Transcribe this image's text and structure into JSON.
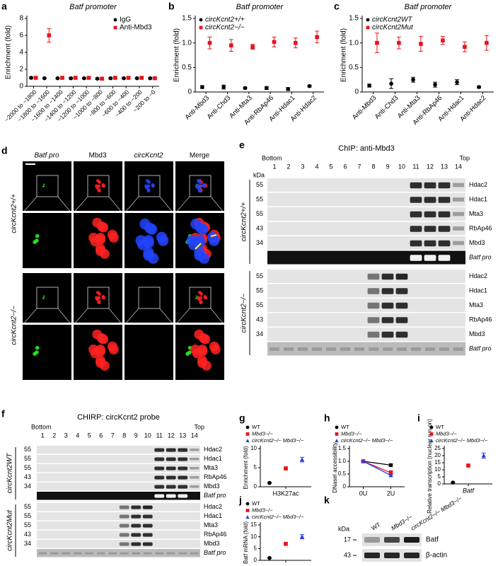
{
  "chart_data": [
    {
      "panel": "a",
      "type": "dot",
      "title": "Batf promoter",
      "ylabel": "Enrichment (fold)",
      "categories": [
        "−2000 to −1800",
        "−1800 to −1600",
        "−1600 to −1400",
        "−1400 to −1200",
        "−1200 to −1000",
        "−1000 to −800",
        "−800 to −600",
        "−600 to −400",
        "−400 to −200",
        "−200 to −0"
      ],
      "series": [
        {
          "name": "IgG",
          "color": "#000000",
          "marker": "circle",
          "values": [
            1.0,
            0.95,
            0.95,
            0.95,
            0.95,
            0.9,
            0.95,
            0.95,
            0.95,
            0.95
          ],
          "errors": [
            0.1,
            0.05,
            0.05,
            0.1,
            0.05,
            0.1,
            0.1,
            0.05,
            0.05,
            0.1
          ]
        },
        {
          "name": "Anti-Mbd3",
          "color": "#e8141c",
          "marker": "square",
          "values": [
            1.0,
            6.0,
            1.0,
            1.0,
            1.0,
            0.9,
            1.0,
            1.0,
            1.0,
            0.95
          ],
          "errors": [
            0.15,
            0.8,
            0.1,
            0.1,
            0.1,
            0.15,
            0.1,
            0.1,
            0.1,
            0.1
          ]
        }
      ],
      "ylim": [
        0,
        8
      ],
      "yticks": [
        0,
        2,
        4,
        6,
        8
      ],
      "legend": "upper-right"
    },
    {
      "panel": "b",
      "type": "dot",
      "title": "Batf promoter",
      "ylabel": "Enrichment (fold)",
      "categories": [
        "Anti-Mbd3",
        "Anti-Chd3",
        "Anti-Mta3",
        "Anti-RbAp46",
        "Anti-Hdac1",
        "Anti-Hdac2"
      ],
      "series": [
        {
          "name": "circKcnt2+/+",
          "color": "#000000",
          "marker": "circle",
          "values": [
            0.1,
            0.1,
            0.08,
            0.08,
            0.06,
            0.12
          ],
          "errors": [
            0.03,
            0.04,
            0.02,
            0.03,
            0.03,
            0.02
          ]
        },
        {
          "name": "circKcnt2−/−",
          "color": "#e8141c",
          "marker": "square",
          "values": [
            1.0,
            0.95,
            0.92,
            1.02,
            1.0,
            1.12
          ],
          "errors": [
            0.12,
            0.12,
            0.05,
            0.1,
            0.1,
            0.12
          ]
        }
      ],
      "ylim": [
        0,
        1.5
      ],
      "yticks": [
        0,
        0.5,
        {
          "value": 1,
          "label": "1.0"
        },
        1.5
      ],
      "legend": "upper-left"
    },
    {
      "panel": "c",
      "type": "dot",
      "title": "Batf promoter",
      "ylabel": "Enrichment (fold)",
      "categories": [
        "Anti-Mbd3",
        "Anti-Chd3",
        "Anti-Mta3",
        "Anti-RbAp46",
        "Anti-Hdac1",
        "Anti-Hdac2"
      ],
      "series": [
        {
          "name": "circKcnt2WT",
          "color": "#000000",
          "marker": "circle",
          "values": [
            0.13,
            0.17,
            0.25,
            0.15,
            0.2,
            0.1
          ],
          "errors": [
            0.03,
            0.1,
            0.05,
            0.05,
            0.05,
            0.02
          ]
        },
        {
          "name": "circKcnt2Mut",
          "color": "#e8141c",
          "marker": "square",
          "values": [
            1.0,
            1.0,
            0.98,
            1.05,
            0.92,
            1.0
          ],
          "errors": [
            0.2,
            0.12,
            0.15,
            0.08,
            0.1,
            0.15
          ]
        }
      ],
      "ylim": [
        0,
        1.5
      ],
      "yticks": [
        0,
        0.5,
        {
          "value": 1,
          "label": "1.0"
        },
        1.5
      ],
      "legend": "upper-left"
    },
    {
      "panel": "g",
      "type": "dot",
      "ylabel": "Enrichment (fold)",
      "categories": [
        "H3K27ac"
      ],
      "series": [
        {
          "name": "WT",
          "color": "#000000",
          "marker": "circle",
          "values": [
            1.0
          ],
          "errors": [
            0.1
          ]
        },
        {
          "name": "Mbd3−/−",
          "color": "#e8141c",
          "marker": "square",
          "values": [
            4.8
          ],
          "errors": [
            0.4
          ]
        },
        {
          "name": "circKcnt2−/− Mbd3−/−",
          "color": "#2a3de0",
          "marker": "triangle",
          "values": [
            7.1
          ],
          "errors": [
            0.6
          ]
        }
      ],
      "ylim": [
        0,
        10
      ],
      "yticks": [
        0,
        5,
        10
      ],
      "legend": "top"
    },
    {
      "panel": "h",
      "type": "line",
      "ylabel": "DNaseI accessibility",
      "categories": [
        "0U",
        "2U"
      ],
      "series": [
        {
          "name": "WT",
          "color": "#000000",
          "marker": "circle",
          "values": [
            1.0,
            0.85
          ],
          "errors": [
            0.02,
            0.05
          ]
        },
        {
          "name": "Mbd3−/−",
          "color": "#e8141c",
          "marker": "square",
          "values": [
            1.0,
            0.55
          ],
          "errors": [
            0.02,
            0.08
          ]
        },
        {
          "name": "circKcnt2−/− Mbd3−/−",
          "color": "#2a3de0",
          "marker": "triangle",
          "values": [
            1.0,
            0.45
          ],
          "errors": [
            0.02,
            0.06
          ]
        }
      ],
      "ylim": [
        0,
        1.5
      ],
      "yticks": [
        0,
        0.5,
        {
          "value": 1,
          "label": "1.0"
        },
        1.5
      ],
      "legend": "top"
    },
    {
      "panel": "i",
      "type": "dot",
      "ylabel": "Relative transcription (nuclear run-on)",
      "categories": [
        "Batf"
      ],
      "series": [
        {
          "name": "WT",
          "color": "#000000",
          "marker": "circle",
          "values": [
            1.0
          ],
          "errors": [
            0.2
          ]
        },
        {
          "name": "Mbd3−/−",
          "color": "#e8141c",
          "marker": "square",
          "values": [
            13.0
          ],
          "errors": [
            1.0
          ]
        },
        {
          "name": "circKcnt2−/− Mbd3−/−",
          "color": "#2a3de0",
          "marker": "triangle",
          "values": [
            20.0
          ],
          "errors": [
            1.8
          ]
        }
      ],
      "ylim": [
        0,
        25
      ],
      "yticks": [
        0,
        5,
        10,
        15,
        20,
        25
      ],
      "legend": "top"
    },
    {
      "panel": "j",
      "type": "dot",
      "ylabel": "Batf mRNA (fold)",
      "categories": [
        null
      ],
      "series": [
        {
          "name": "WT",
          "color": "#000000",
          "marker": "circle",
          "values": [
            1.0
          ],
          "errors": [
            0.1
          ]
        },
        {
          "name": "Mbd3−/−",
          "color": "#e8141c",
          "marker": "square",
          "values": [
            7.0
          ],
          "errors": [
            0.5
          ]
        },
        {
          "name": "circKcnt2−/− Mbd3−/−",
          "color": "#2a3de0",
          "marker": "triangle",
          "values": [
            10.0
          ],
          "errors": [
            0.9
          ]
        }
      ],
      "ylim": [
        0,
        15
      ],
      "yticks": [
        0,
        5,
        10,
        15
      ],
      "legend": "top"
    }
  ],
  "microscopy": {
    "panel": "d",
    "columns": [
      "Batf pro",
      "Mbd3",
      "circKcnt2",
      "Merge"
    ],
    "rows": [
      "circKcnt2+/+",
      "circKcnt2−/−"
    ]
  },
  "blots": {
    "e": {
      "panel": "e",
      "title": "ChIP: anti-Mbd3",
      "bottom": "Bottom",
      "top": "Top",
      "kda": "kDa",
      "lanes": [
        1,
        2,
        3,
        4,
        5,
        6,
        7,
        8,
        9,
        10,
        11,
        12,
        13,
        14
      ],
      "groups": [
        {
          "label": "circKcnt2+/+",
          "rows": [
            {
              "kda": 55,
              "label": "Hdac2"
            },
            {
              "kda": 55,
              "label": "Hdac1"
            },
            {
              "kda": 55,
              "label": "Mta3"
            },
            {
              "kda": 43,
              "label": "RbAp46"
            },
            {
              "kda": 34,
              "label": "Mbd3"
            },
            {
              "label": "Batf pro"
            }
          ]
        },
        {
          "label": "circKcnt2−/−",
          "rows": [
            {
              "kda": 55,
              "label": "Hdac2"
            },
            {
              "kda": 55,
              "label": "Hdac1"
            },
            {
              "kda": 55,
              "label": "Mta3"
            },
            {
              "kda": 43,
              "label": "RbAp46"
            },
            {
              "kda": 34,
              "label": "Mbd3"
            },
            {
              "label": "Batf pro"
            }
          ]
        }
      ]
    },
    "f": {
      "panel": "f",
      "title": "CHIRP: circKcnt2 probe",
      "bottom": "Bottom",
      "top": "Top",
      "lanes": [
        1,
        2,
        3,
        4,
        5,
        6,
        7,
        8,
        9,
        10,
        11,
        12,
        13,
        14
      ],
      "groups": [
        {
          "label": "circKcnt2WT",
          "rows": [
            {
              "kda": 55,
              "label": "Hdac2"
            },
            {
              "kda": 55,
              "label": "Hdac1"
            },
            {
              "kda": 55,
              "label": "Mta3"
            },
            {
              "kda": 43,
              "label": "RbAp46"
            },
            {
              "kda": 34,
              "label": "Mbd3"
            },
            {
              "label": "Batf pro"
            }
          ]
        },
        {
          "label": "circKcnt2Mut",
          "rows": [
            {
              "kda": 55,
              "label": "Hdac2"
            },
            {
              "kda": 55,
              "label": "Hdac1"
            },
            {
              "kda": 55,
              "label": "Mta3"
            },
            {
              "kda": 43,
              "label": "RbAp46"
            },
            {
              "kda": 34,
              "label": "Mbd3"
            },
            {
              "label": "Batf pro"
            }
          ]
        }
      ]
    },
    "k": {
      "panel": "k",
      "kda": "kDa",
      "lanes": [
        "WT",
        "Mbd3−/−",
        "circKcnt2−/− Mbd3−/−"
      ],
      "rows": [
        {
          "kda": 17,
          "label": "Batf"
        },
        {
          "kda": 43,
          "label": "β-actin"
        }
      ]
    }
  }
}
